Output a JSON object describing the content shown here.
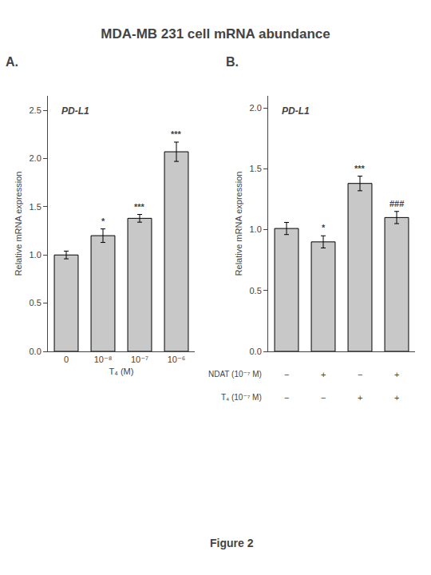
{
  "title": "MDA-MB 231 cell mRNA abundance",
  "caption": "Figure 2",
  "chart_data": [
    {
      "type": "bar",
      "label": "A.",
      "gene_label": "PD-L1",
      "ylabel": "Relative mRNA expression",
      "xlabel": "T₄ (M)",
      "categories": [
        "0",
        "10⁻⁸",
        "10⁻⁷",
        "10⁻⁶"
      ],
      "values": [
        1.0,
        1.2,
        1.38,
        2.07
      ],
      "errors": [
        0.04,
        0.07,
        0.04,
        0.1
      ],
      "annotations": [
        null,
        "*",
        "***",
        "***"
      ],
      "color": "#c8c8c8",
      "ylim": [
        0.0,
        2.65
      ],
      "yticks": [
        {
          "value": 0.0,
          "label": "0.0"
        },
        0.5,
        {
          "value": 1.0,
          "label": "1.0"
        },
        1.5,
        {
          "value": 2.0,
          "label": "2.0"
        },
        2.5
      ],
      "grid": false
    },
    {
      "type": "bar",
      "label": "B.",
      "gene_label": "PD-L1",
      "ylabel": "Relative mRNA expression",
      "categories": [
        null,
        null,
        null,
        null
      ],
      "values": [
        1.01,
        0.9,
        1.38,
        1.1
      ],
      "errors": [
        0.05,
        0.05,
        0.06,
        0.05
      ],
      "annotations": [
        null,
        "*",
        "***",
        "###"
      ],
      "rows": [
        {
          "label": "NDAT (10⁻⁷ M)",
          "values": [
            "−",
            "+",
            "−",
            "+"
          ]
        },
        {
          "label": "T₄ (10⁻⁷ M)",
          "values": [
            "−",
            "−",
            "+",
            "+"
          ]
        }
      ],
      "color": "#c8c8c8",
      "ylim": [
        0.0,
        2.1
      ],
      "yticks": [
        {
          "value": 0.0,
          "label": "0.0"
        },
        0.5,
        {
          "value": 1.0,
          "label": "1.0"
        },
        1.5,
        {
          "value": 2.0,
          "label": "2.0"
        }
      ],
      "grid": false
    }
  ]
}
